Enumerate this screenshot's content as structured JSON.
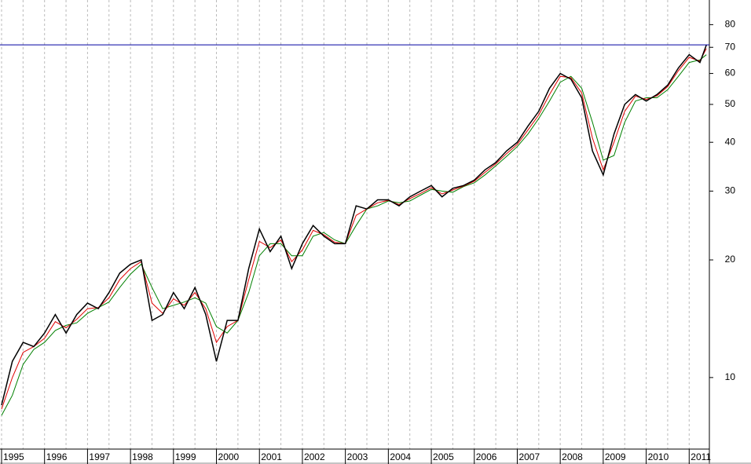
{
  "chart_data": {
    "type": "line",
    "log_scale": true,
    "grid": true,
    "x": [
      1995,
      1995.25,
      1995.5,
      1995.75,
      1996,
      1996.25,
      1996.5,
      1996.75,
      1997,
      1997.25,
      1997.5,
      1997.75,
      1998,
      1998.25,
      1998.5,
      1998.75,
      1999,
      1999.25,
      1999.5,
      1999.75,
      2000,
      2000.25,
      2000.5,
      2000.75,
      2001,
      2001.25,
      2001.5,
      2001.75,
      2002,
      2002.25,
      2002.5,
      2002.75,
      2003,
      2003.25,
      2003.5,
      2003.75,
      2004,
      2004.25,
      2004.5,
      2004.75,
      2005,
      2005.25,
      2005.5,
      2005.75,
      2006,
      2006.25,
      2006.5,
      2006.75,
      2007,
      2007.25,
      2007.5,
      2007.75,
      2008,
      2008.25,
      2008.5,
      2008.75,
      2009,
      2009.25,
      2009.5,
      2009.75,
      2010,
      2010.25,
      2010.5,
      2010.75,
      2011,
      2011.25,
      2011.4
    ],
    "series": [
      {
        "color": "#008000",
        "values": [
          8,
          9,
          10.8,
          11.8,
          12.3,
          13.2,
          13.6,
          13.8,
          14.6,
          15.1,
          15.6,
          17,
          18.4,
          19.5,
          17,
          15,
          15.3,
          15.6,
          16,
          15.5,
          13.5,
          13,
          14,
          16.5,
          20.5,
          22,
          22,
          20.5,
          20.5,
          23,
          23.5,
          22.5,
          22,
          24.5,
          27,
          27.5,
          28.3,
          28,
          28.3,
          29.3,
          30.3,
          30,
          29.8,
          30.8,
          31.5,
          33,
          34.8,
          36.8,
          39,
          42,
          46,
          51,
          57,
          59,
          55,
          45,
          36,
          37,
          45,
          51,
          52,
          52,
          54.5,
          59,
          64,
          65,
          67
        ]
      },
      {
        "color": "#e00000",
        "values": [
          8.3,
          10,
          11.6,
          12,
          12.6,
          13.9,
          13.4,
          14.1,
          15,
          15.1,
          16,
          17.8,
          19,
          19.8,
          15.5,
          14.6,
          15.9,
          15.3,
          16.5,
          15,
          12.3,
          13.5,
          14,
          17.8,
          22.3,
          21.5,
          22.5,
          19.8,
          21.2,
          23.8,
          23.2,
          22.2,
          22,
          26,
          27,
          28,
          28.4,
          27.7,
          28.7,
          29.6,
          30.6,
          29.5,
          30.2,
          30.9,
          31.8,
          33.5,
          35.2,
          37.4,
          39.5,
          43,
          47,
          53,
          59,
          58.5,
          53.5,
          41,
          34,
          40,
          48,
          52.5,
          51.5,
          52.6,
          55.5,
          61,
          66,
          64.5,
          69.5
        ]
      },
      {
        "color": "#000000",
        "values": [
          8.5,
          11,
          12.3,
          12,
          13,
          14.5,
          13,
          14.5,
          15.5,
          15,
          16.5,
          18.5,
          19.5,
          20,
          14,
          14.5,
          16.5,
          15,
          17,
          14.5,
          11,
          14,
          14,
          19,
          24,
          21,
          23,
          19,
          22,
          24.5,
          23,
          22,
          22,
          27.5,
          27,
          28.5,
          28.5,
          27.5,
          29,
          30,
          31,
          29,
          30.5,
          31,
          32,
          34,
          35.5,
          38,
          40,
          44,
          48,
          55,
          60,
          58,
          52,
          38,
          33,
          42,
          50,
          53,
          51,
          53,
          56,
          62,
          67,
          64,
          71
        ]
      }
    ],
    "reference_line": {
      "value": 71,
      "color": "#0000a0"
    },
    "xlim": [
      1995,
      2011.47
    ],
    "xticks": [
      1995,
      1996,
      1997,
      1998,
      1999,
      2000,
      2001,
      2002,
      2003,
      2004,
      2005,
      2006,
      2007,
      2008,
      2009,
      2010,
      2011
    ],
    "xminor_ticks": [
      1995.5,
      1996.5,
      1997.5,
      1998.5,
      1999.5,
      2000.5,
      2001.5,
      2002.5,
      2003.5,
      2004.5,
      2005.5,
      2006.5,
      2007.5,
      2008.5,
      2009.5,
      2010.5
    ],
    "ylim": [
      6.56,
      92.5
    ],
    "yticks": [
      10,
      20,
      30,
      40,
      50,
      60,
      70,
      80
    ]
  }
}
